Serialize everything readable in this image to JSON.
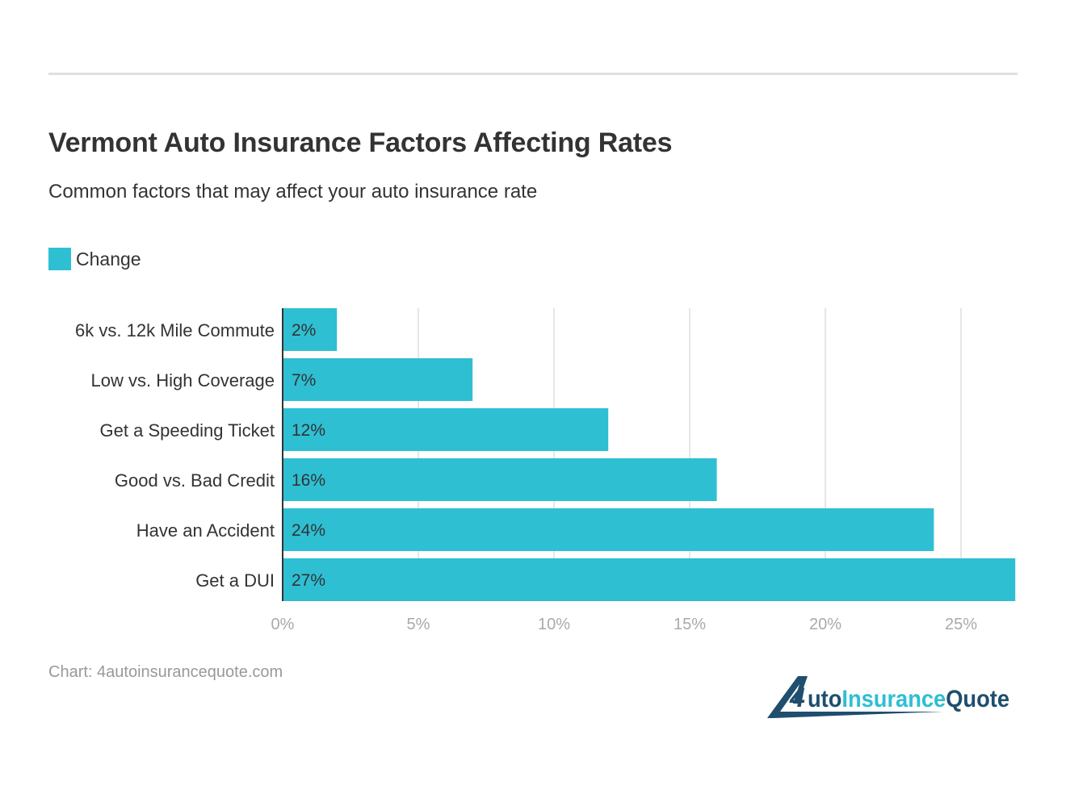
{
  "title": "Vermont Auto Insurance Factors Affecting Rates",
  "subtitle": "Common factors that may affect your auto insurance rate",
  "source": "Chart: 4autoinsurancequote.com",
  "logo": {
    "text_part1": "4uto",
    "text_part2": "Insurance",
    "text_part3": "Quote"
  },
  "colors": {
    "bar": "#2ebfd3",
    "text": "#333333",
    "grid": "#e6e6e6",
    "axis_label": "#999999",
    "logo_dark": "#1f4e6e",
    "logo_light": "#2ebfd3"
  },
  "chart_data": {
    "type": "bar",
    "orientation": "horizontal",
    "categories": [
      "6k vs. 12k Mile Commute",
      "Low vs. High Coverage",
      "Get a Speeding Ticket",
      "Good vs. Bad Credit",
      "Have an Accident",
      "Get a DUI"
    ],
    "series": [
      {
        "name": "Change",
        "values": [
          2,
          7,
          12,
          16,
          24,
          27
        ]
      }
    ],
    "data_labels": [
      "2%",
      "7%",
      "12%",
      "16%",
      "24%",
      "27%"
    ],
    "xlim": [
      0,
      27
    ],
    "xticks": [
      0,
      5,
      10,
      15,
      20,
      25
    ],
    "xtick_labels": [
      "0%",
      "5%",
      "10%",
      "15%",
      "20%",
      "25%"
    ],
    "grid": true,
    "legend": "top-left"
  }
}
